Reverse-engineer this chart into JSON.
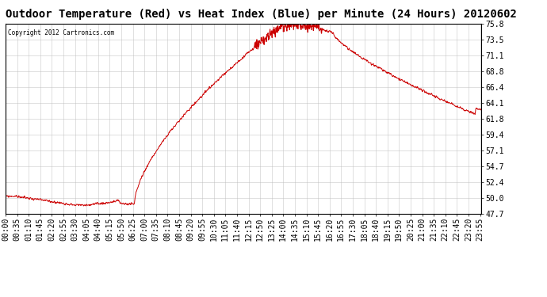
{
  "title": "Outdoor Temperature (Red) vs Heat Index (Blue) per Minute (24 Hours) 20120602",
  "copyright_text": "Copyright 2012 Cartronics.com",
  "line_color": "#cc0000",
  "background_color": "#ffffff",
  "plot_bg_color": "#ffffff",
  "grid_color": "#bbbbbb",
  "yticks": [
    47.7,
    50.0,
    52.4,
    54.7,
    57.1,
    59.4,
    61.8,
    64.1,
    66.4,
    68.8,
    71.1,
    73.5,
    75.8
  ],
  "ymin": 47.7,
  "ymax": 75.8,
  "title_fontsize": 10,
  "tick_fontsize": 7,
  "xlabel_rotation": 90,
  "tick_step_minutes": 35
}
